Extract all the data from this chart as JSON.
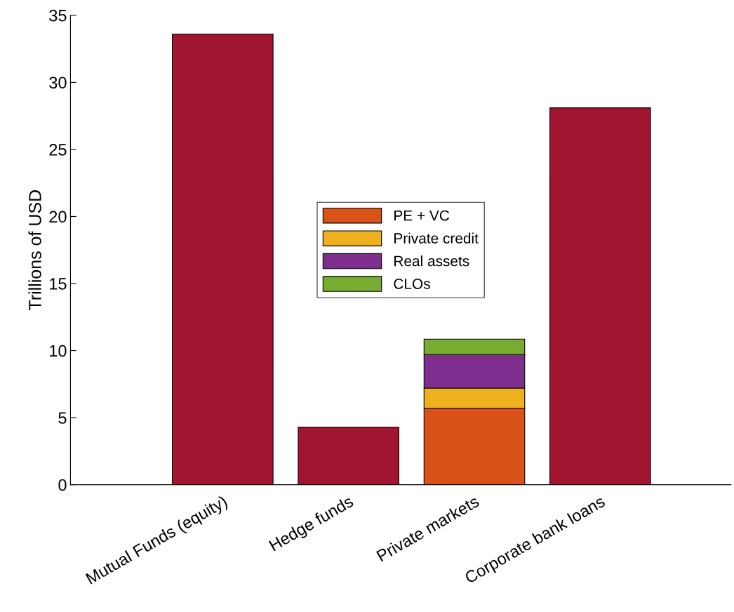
{
  "chart_data": {
    "type": "bar",
    "stacked": true,
    "ylabel": "Trillions of USD",
    "categories": [
      "Mutual Funds (equity)",
      "Hedge funds",
      "Private markets",
      "Corporate bank loans"
    ],
    "series": [
      {
        "color": "#a21530",
        "values": [
          33.6,
          4.3,
          null,
          28.1
        ]
      },
      {
        "name": "PE + VC",
        "color": "#d95319",
        "values": [
          null,
          null,
          5.7,
          null
        ]
      },
      {
        "name": "Private credit",
        "color": "#edb120",
        "values": [
          null,
          null,
          1.5,
          null
        ]
      },
      {
        "name": "Real assets",
        "color": "#7e2f8e",
        "values": [
          null,
          null,
          2.5,
          null
        ]
      },
      {
        "name": "CLOs",
        "color": "#77ac30",
        "values": [
          null,
          null,
          1.15,
          null
        ]
      }
    ],
    "ylim": [
      0,
      35
    ],
    "yticks": [
      0,
      5,
      10,
      15,
      20,
      25,
      30,
      35
    ],
    "grid": false,
    "legend": "center"
  }
}
